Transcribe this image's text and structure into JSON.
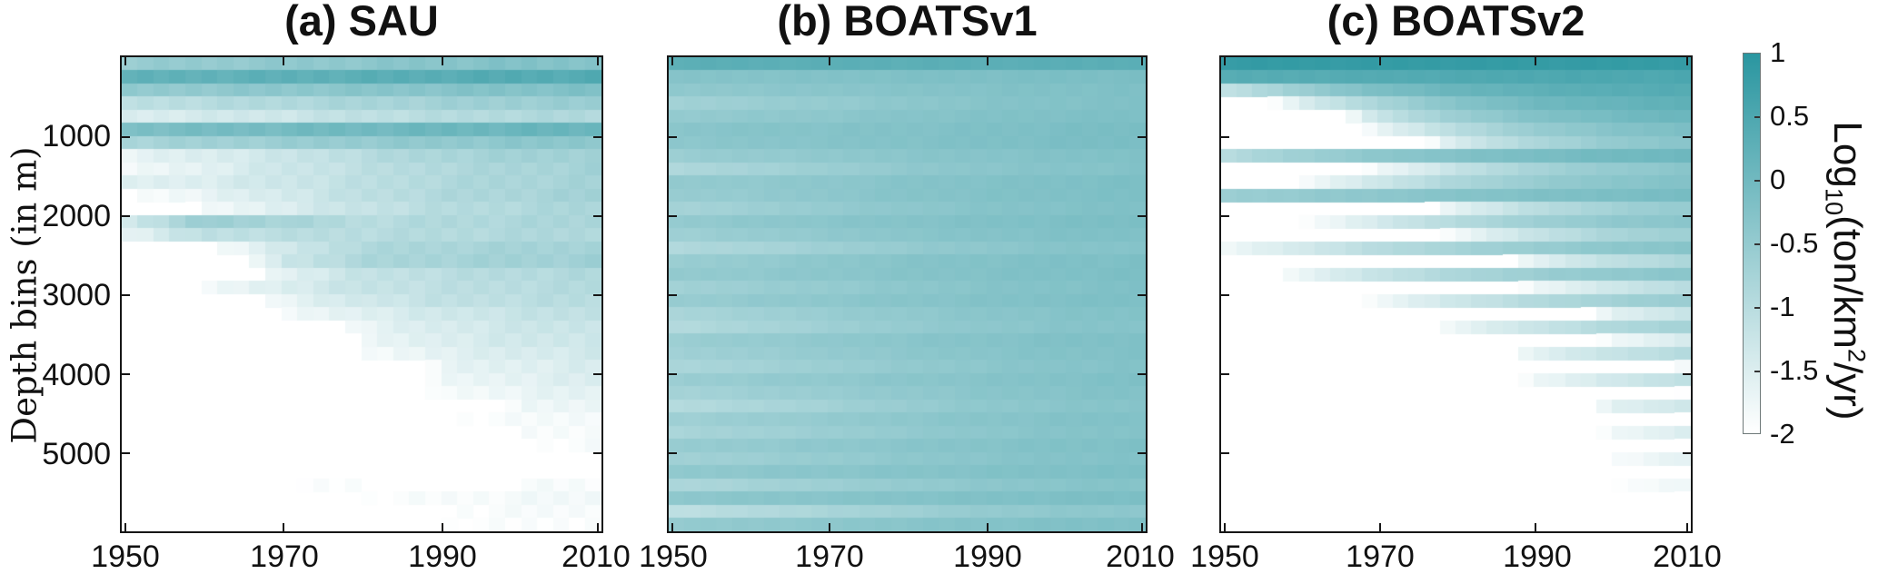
{
  "figure": {
    "background": "#ffffff"
  },
  "titles": [
    "(a) SAU",
    "(b) BOATSv1",
    "(c) BOATSv2"
  ],
  "axes": {
    "y_label": "Depth bins (in m)",
    "y_ticks": [
      "1000",
      "2000",
      "3000",
      "4000",
      "5000"
    ],
    "x_ticks": [
      "1950",
      "1970",
      "1990",
      "2010"
    ]
  },
  "colorbar": {
    "ticks": [
      "1",
      "0.5",
      "0",
      "-0.5",
      "-1",
      "-1.5",
      "-2"
    ],
    "label": {
      "prefix": "Log",
      "sub": "10",
      "mid": "(ton/km",
      "sup": "2",
      "suffix": "/yr)"
    },
    "vmin": -2,
    "vmax": 1,
    "max_color": "#2a96a0",
    "min_color": "#ffffff"
  },
  "chart_data": [
    {
      "type": "heatmap",
      "title": "(a) SAU",
      "xlabel_years": [
        1950,
        1960,
        1970,
        1980,
        1990,
        2000,
        2010
      ],
      "x_range": [
        1950,
        2010
      ],
      "y_range_depth_m": [
        0,
        6000
      ],
      "n_depth_rows": 36,
      "depth_bin_height_m": 166.7,
      "value_units": "log10(ton/km2/yr)",
      "vmin": -2,
      "vmax": 1,
      "noise": 0.08,
      "rows": [
        [
          -0.55,
          -0.5,
          -0.45,
          -0.4,
          -0.3,
          -0.25,
          -0.25
        ],
        [
          0.2,
          0.22,
          0.25,
          0.3,
          0.35,
          0.4,
          0.4
        ],
        [
          -0.5,
          -0.45,
          -0.4,
          -0.35,
          -0.3,
          -0.25,
          -0.2
        ],
        [
          -1.1,
          -1.0,
          -0.9,
          -0.8,
          -0.7,
          -0.6,
          -0.6
        ],
        [
          -1.5,
          -1.4,
          -1.3,
          -1.1,
          -1.0,
          -0.9,
          -0.9
        ],
        [
          -0.15,
          -0.1,
          -0.05,
          0,
          0.05,
          0.1,
          0.1
        ],
        [
          -0.8,
          -0.7,
          -0.6,
          -0.5,
          -0.45,
          -0.4,
          -0.35
        ],
        [
          -1.7,
          -1.5,
          -1.3,
          -1.0,
          -0.8,
          -0.7,
          -0.65
        ],
        [
          -1.9,
          -1.6,
          -1.3,
          -1.1,
          -0.9,
          -0.8,
          -0.7
        ],
        [
          -1.6,
          -1.5,
          -1.3,
          -1.1,
          -0.9,
          -0.8,
          -0.75
        ],
        [
          -2,
          -1.7,
          -1.4,
          -1.1,
          -0.9,
          -0.8,
          -0.7
        ],
        [
          null,
          -1.9,
          -1.5,
          -1.2,
          -1.0,
          -0.9,
          -0.8
        ],
        [
          -1.4,
          -0.6,
          -0.75,
          -1.0,
          -0.9,
          -0.85,
          -0.8
        ],
        [
          -1.7,
          -1.1,
          -1.05,
          -1.0,
          -0.95,
          -0.9,
          -0.85
        ],
        [
          null,
          -2,
          -1.4,
          -0.9,
          -0.8,
          -0.75,
          -0.7
        ],
        [
          null,
          null,
          -1.3,
          -0.85,
          -0.75,
          -0.7,
          -0.65
        ],
        [
          null,
          null,
          -1.6,
          -1.2,
          -1.05,
          -0.95,
          -0.9
        ],
        [
          null,
          -1.9,
          -1.5,
          -1.2,
          -1.1,
          -1.0,
          -0.95
        ],
        [
          null,
          null,
          -1.7,
          -1.35,
          -1.15,
          -1.05,
          -1.0
        ],
        [
          null,
          null,
          -1.9,
          -1.55,
          -1.35,
          -1.2,
          -1.1
        ],
        [
          null,
          null,
          null,
          -1.7,
          -1.45,
          -1.3,
          -1.2
        ],
        [
          null,
          null,
          null,
          -1.8,
          -1.5,
          -1.35,
          -1.25
        ],
        [
          null,
          null,
          null,
          -1.95,
          -1.6,
          -1.45,
          -1.35
        ],
        [
          null,
          null,
          null,
          null,
          -1.7,
          -1.55,
          -1.45
        ],
        [
          null,
          null,
          null,
          null,
          -1.8,
          -1.6,
          -1.5
        ],
        [
          null,
          null,
          null,
          null,
          -1.9,
          -1.7,
          -1.6
        ],
        [
          null,
          null,
          null,
          null,
          null,
          -1.8,
          -1.7
        ],
        [
          null,
          null,
          null,
          null,
          -2,
          -1.9,
          -1.8
        ],
        [
          null,
          null,
          null,
          null,
          null,
          -1.9,
          -1.85
        ],
        [
          null,
          null,
          null,
          null,
          null,
          -2,
          -1.9
        ],
        [
          null,
          null,
          null,
          null,
          null,
          null,
          -1.95
        ],
        [
          null,
          null,
          null,
          null,
          null,
          null,
          null
        ],
        [
          null,
          null,
          -2,
          -1.95,
          null,
          -1.9,
          -1.9
        ],
        [
          null,
          null,
          null,
          -2,
          -1.9,
          -1.85,
          -1.8
        ],
        [
          null,
          null,
          null,
          null,
          -1.95,
          -1.9,
          -1.85
        ],
        [
          null,
          null,
          null,
          null,
          -2,
          -1.95,
          -1.9
        ]
      ]
    },
    {
      "type": "heatmap",
      "title": "(b) BOATSv1",
      "xlabel_years": [
        1950,
        1960,
        1970,
        1980,
        1990,
        2000,
        2010
      ],
      "x_range": [
        1950,
        2010
      ],
      "y_range_depth_m": [
        0,
        6000
      ],
      "n_depth_rows": 36,
      "depth_bin_height_m": 166.7,
      "value_units": "log10(ton/km2/yr)",
      "vmin": -2,
      "vmax": 1,
      "noise": 0.03,
      "rows": [
        [
          0.3,
          0.3,
          0.3,
          0.3,
          0.3,
          0.32,
          0.32
        ],
        [
          -0.3,
          -0.28,
          -0.25,
          -0.2,
          -0.18,
          -0.15,
          -0.15
        ],
        [
          -0.45,
          -0.4,
          -0.35,
          -0.3,
          -0.25,
          -0.22,
          -0.2
        ],
        [
          -0.7,
          -0.6,
          -0.5,
          -0.4,
          -0.3,
          -0.25,
          -0.22
        ],
        [
          -0.5,
          -0.45,
          -0.4,
          -0.3,
          -0.25,
          -0.2,
          -0.18
        ],
        [
          -0.35,
          -0.3,
          -0.28,
          -0.25,
          -0.2,
          -0.15,
          -0.12
        ],
        [
          -0.4,
          -0.35,
          -0.3,
          -0.25,
          -0.2,
          -0.15,
          -0.12
        ],
        [
          -0.6,
          -0.5,
          -0.45,
          -0.35,
          -0.3,
          -0.25,
          -0.2
        ],
        [
          -0.9,
          -0.75,
          -0.6,
          -0.45,
          -0.35,
          -0.3,
          -0.25
        ],
        [
          -0.5,
          -0.45,
          -0.4,
          -0.3,
          -0.25,
          -0.2,
          -0.15
        ],
        [
          -0.55,
          -0.5,
          -0.4,
          -0.3,
          -0.25,
          -0.2,
          -0.18
        ],
        [
          -0.75,
          -0.65,
          -0.5,
          -0.4,
          -0.3,
          -0.25,
          -0.2
        ],
        [
          -0.5,
          -0.42,
          -0.35,
          -0.28,
          -0.22,
          -0.18,
          -0.15
        ],
        [
          -0.65,
          -0.55,
          -0.45,
          -0.35,
          -0.28,
          -0.22,
          -0.2
        ],
        [
          -0.9,
          -0.8,
          -0.65,
          -0.5,
          -0.4,
          -0.3,
          -0.28
        ],
        [
          -0.6,
          -0.5,
          -0.4,
          -0.3,
          -0.25,
          -0.2,
          -0.18
        ],
        [
          -0.5,
          -0.45,
          -0.38,
          -0.3,
          -0.24,
          -0.2,
          -0.16
        ],
        [
          -0.7,
          -0.6,
          -0.5,
          -0.4,
          -0.3,
          -0.25,
          -0.2
        ],
        [
          -0.55,
          -0.48,
          -0.4,
          -0.32,
          -0.26,
          -0.2,
          -0.18
        ],
        [
          -0.8,
          -0.7,
          -0.55,
          -0.45,
          -0.35,
          -0.28,
          -0.25
        ],
        [
          -0.95,
          -0.8,
          -0.65,
          -0.5,
          -0.4,
          -0.32,
          -0.28
        ],
        [
          -0.6,
          -0.52,
          -0.44,
          -0.35,
          -0.28,
          -0.22,
          -0.2
        ],
        [
          -0.7,
          -0.6,
          -0.5,
          -0.4,
          -0.32,
          -0.26,
          -0.22
        ],
        [
          -0.85,
          -0.72,
          -0.6,
          -0.48,
          -0.38,
          -0.3,
          -0.26
        ],
        [
          -0.6,
          -0.52,
          -0.45,
          -0.36,
          -0.3,
          -0.24,
          -0.2
        ],
        [
          -0.75,
          -0.65,
          -0.55,
          -0.45,
          -0.35,
          -0.28,
          -0.24
        ],
        [
          -0.95,
          -0.85,
          -0.7,
          -0.55,
          -0.42,
          -0.34,
          -0.3
        ],
        [
          -0.65,
          -0.58,
          -0.5,
          -0.4,
          -0.32,
          -0.26,
          -0.22
        ],
        [
          -0.8,
          -0.7,
          -0.6,
          -0.48,
          -0.38,
          -0.3,
          -0.26
        ],
        [
          -0.55,
          -0.5,
          -0.42,
          -0.35,
          -0.28,
          -0.23,
          -0.2
        ],
        [
          -0.7,
          -0.62,
          -0.52,
          -0.42,
          -0.34,
          -0.27,
          -0.24
        ],
        [
          -0.45,
          -0.4,
          -0.35,
          -0.3,
          -0.25,
          -0.2,
          -0.18
        ],
        [
          -0.85,
          -0.75,
          -0.62,
          -0.5,
          -0.4,
          -0.32,
          -0.28
        ],
        [
          -0.4,
          -0.36,
          -0.32,
          -0.27,
          -0.22,
          -0.18,
          -0.16
        ],
        [
          -1.1,
          -0.95,
          -0.8,
          -0.65,
          -0.5,
          -0.42,
          -0.38
        ],
        [
          -0.5,
          -0.45,
          -0.4,
          -0.33,
          -0.27,
          -0.22,
          -0.2
        ]
      ]
    },
    {
      "type": "heatmap",
      "title": "(c) BOATSv2",
      "xlabel_years": [
        1950,
        1960,
        1970,
        1980,
        1990,
        2000,
        2010
      ],
      "x_range": [
        1950,
        2010
      ],
      "y_range_depth_m": [
        0,
        6000
      ],
      "n_depth_rows": 36,
      "depth_bin_height_m": 166.7,
      "value_units": "log10(ton/km2/yr)",
      "vmin": -2,
      "vmax": 1,
      "noise": 0.03,
      "rows": [
        [
          0.85,
          0.85,
          0.85,
          0.85,
          0.85,
          0.85,
          0.85
        ],
        [
          0.35,
          0.38,
          0.4,
          0.45,
          0.5,
          0.5,
          0.5
        ],
        [
          -1.2,
          -0.6,
          -0.15,
          0.1,
          0.25,
          0.35,
          0.4
        ],
        [
          null,
          -1.5,
          -0.8,
          -0.3,
          0,
          0.15,
          0.25
        ],
        [
          null,
          null,
          -1.2,
          -0.6,
          -0.25,
          -0.05,
          0.1
        ],
        [
          null,
          null,
          -1.7,
          -1.0,
          -0.55,
          -0.3,
          -0.15
        ],
        [
          null,
          null,
          null,
          -1.4,
          -0.85,
          -0.5,
          -0.3
        ],
        [
          -1.0,
          -0.65,
          -0.4,
          -0.25,
          -0.12,
          -0.02,
          0.05
        ],
        [
          null,
          null,
          -1.8,
          -1.2,
          -0.75,
          -0.5,
          -0.35
        ],
        [
          null,
          -1.9,
          -1.3,
          -0.85,
          -0.55,
          -0.35,
          -0.25
        ],
        [
          -0.6,
          -0.5,
          -0.4,
          -0.3,
          -0.22,
          -0.15,
          -0.1
        ],
        [
          null,
          null,
          null,
          -1.6,
          -1.05,
          -0.7,
          -0.5
        ],
        [
          null,
          -2,
          -1.4,
          -0.95,
          -0.65,
          -0.45,
          -0.35
        ],
        [
          null,
          null,
          null,
          -1.8,
          -1.2,
          -0.8,
          -0.6
        ],
        [
          -1.8,
          -1.4,
          -1.0,
          -0.75,
          -0.55,
          -0.4,
          -0.3
        ],
        [
          null,
          null,
          null,
          null,
          -1.6,
          -1.1,
          -0.85
        ],
        [
          null,
          -1.7,
          -1.2,
          -0.85,
          -0.6,
          -0.45,
          -0.35
        ],
        [
          null,
          null,
          null,
          null,
          -1.8,
          -1.3,
          -1.0
        ],
        [
          null,
          null,
          -1.8,
          -1.3,
          -0.95,
          -0.7,
          -0.55
        ],
        [
          null,
          null,
          null,
          null,
          null,
          -1.6,
          -1.2
        ],
        [
          null,
          null,
          null,
          -1.7,
          -1.25,
          -0.9,
          -0.7
        ],
        [
          null,
          null,
          null,
          null,
          null,
          -1.8,
          -1.4
        ],
        [
          null,
          null,
          null,
          null,
          -1.6,
          -1.2,
          -0.95
        ],
        [
          null,
          null,
          null,
          null,
          null,
          null,
          -1.7
        ],
        [
          null,
          null,
          null,
          null,
          -1.8,
          -1.35,
          -1.1
        ],
        [
          null,
          null,
          null,
          null,
          null,
          null,
          -1.85
        ],
        [
          null,
          null,
          null,
          null,
          null,
          -1.6,
          -1.3
        ],
        [
          null,
          null,
          null,
          null,
          null,
          null,
          -1.9
        ],
        [
          null,
          null,
          null,
          null,
          null,
          -1.8,
          -1.45
        ],
        [
          null,
          null,
          null,
          null,
          null,
          null,
          -1.95
        ],
        [
          null,
          null,
          null,
          null,
          null,
          -1.9,
          -1.6
        ],
        [
          null,
          null,
          null,
          null,
          null,
          null,
          null
        ],
        [
          null,
          null,
          null,
          null,
          null,
          -2,
          -1.75
        ],
        [
          null,
          null,
          null,
          null,
          null,
          null,
          -1.9
        ],
        [
          null,
          null,
          null,
          null,
          null,
          null,
          -1.95
        ],
        [
          null,
          null,
          null,
          null,
          null,
          null,
          null
        ]
      ]
    }
  ]
}
